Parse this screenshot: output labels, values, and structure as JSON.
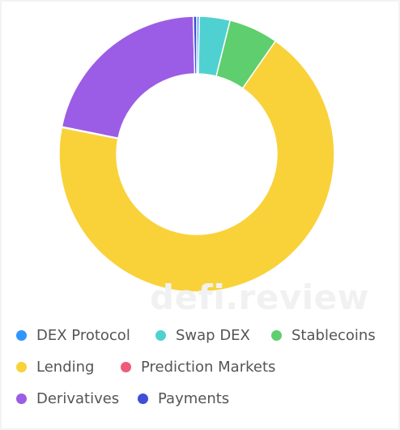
{
  "watermark": "defi.review",
  "chart_data": {
    "type": "pie",
    "variant": "donut",
    "categories": [
      "DEX Protocol",
      "Swap DEX",
      "Stablecoins",
      "Lending",
      "Prediction Markets",
      "Derivatives",
      "Payments"
    ],
    "values": [
      0.3,
      3.6,
      5.8,
      68.4,
      0.1,
      21.4,
      0.4
    ],
    "unit": "%",
    "colors": [
      "#2f95ff",
      "#4fd1d1",
      "#5fce6e",
      "#f9d23a",
      "#ef5b7a",
      "#9b5de5",
      "#3f4fd6"
    ],
    "legend_position": "bottom"
  },
  "legend": {
    "rows": [
      [
        {
          "label": "DEX Protocol",
          "color": "#2f95ff"
        },
        {
          "label": "Swap DEX",
          "color": "#4fd1d1"
        },
        {
          "label": "Stablecoins",
          "color": "#5fce6e"
        }
      ],
      [
        {
          "label": "Lending",
          "color": "#f9d23a"
        },
        {
          "label": "Prediction Markets",
          "color": "#ef5b7a"
        }
      ],
      [
        {
          "label": "Derivatives",
          "color": "#9b5de5"
        },
        {
          "label": "Payments",
          "color": "#3f4fd6"
        }
      ]
    ]
  }
}
